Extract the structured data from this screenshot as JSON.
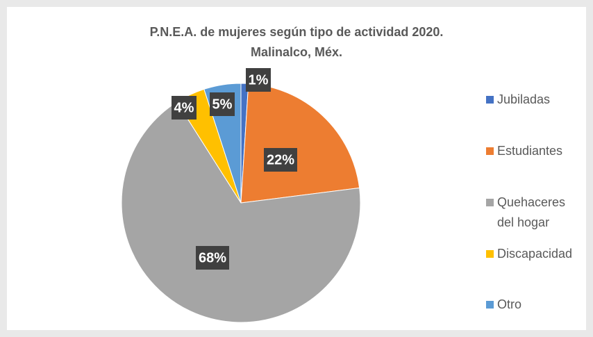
{
  "chart_data": {
    "type": "pie",
    "title": [
      "P.N.E.A. de mujeres según tipo de actividad 2020.",
      "Malinalco, Méx."
    ],
    "categories": [
      "Jubiladas",
      "Estudiantes",
      "Quehaceres del hogar",
      "Discapacidad",
      "Otro"
    ],
    "values": [
      1,
      22,
      68,
      4,
      5
    ],
    "value_labels": [
      "1%",
      "22%",
      "68%",
      "4%",
      "5%"
    ],
    "colors": [
      "#4472c4",
      "#ed7d31",
      "#a5a5a5",
      "#ffc000",
      "#5b9bd5"
    ],
    "legend": "right"
  }
}
